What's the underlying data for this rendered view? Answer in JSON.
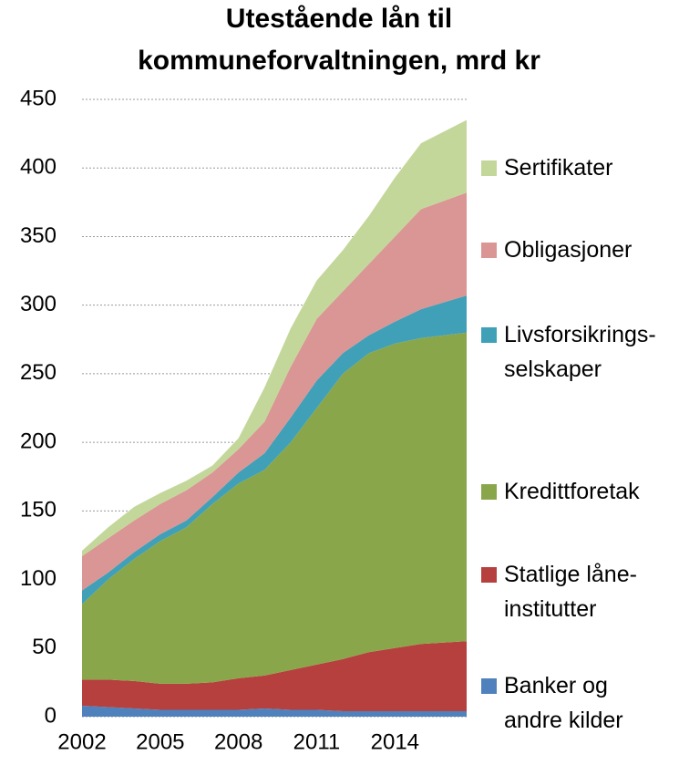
{
  "chart_data": {
    "type": "area",
    "title": "Utestående lån til\nkommuneforvaltningen, mrd kr",
    "x": [
      2002,
      2003,
      2004,
      2005,
      2006,
      2007,
      2008,
      2009,
      2010,
      2011,
      2012,
      2013,
      2014,
      2015,
      2016.75
    ],
    "xlim": [
      2002,
      2016.75
    ],
    "xticks": [
      2002,
      2005,
      2008,
      2011,
      2014
    ],
    "ylim": [
      0,
      450
    ],
    "yticks": [
      0,
      50,
      100,
      150,
      200,
      250,
      300,
      350,
      400,
      450
    ],
    "grid": true,
    "stacked": true,
    "series": [
      {
        "name": "Banker og\nandre kilder",
        "color": "#4f81bd",
        "values": [
          8,
          7,
          6,
          5,
          5,
          5,
          5,
          6,
          5,
          5,
          4,
          4,
          4,
          4,
          4
        ]
      },
      {
        "name": "Statlige låne-\ninstitutter",
        "color": "#b5403d",
        "values": [
          19,
          20,
          20,
          19,
          19,
          20,
          23,
          24,
          29,
          33,
          38,
          43,
          46,
          49,
          51
        ]
      },
      {
        "name": "Kredittforetak",
        "color": "#8aa64a",
        "values": [
          55,
          73,
          89,
          104,
          114,
          130,
          142,
          150,
          166,
          187,
          208,
          218,
          222,
          223,
          225
        ]
      },
      {
        "name": "Livsforsikrings-\nselskaper",
        "color": "#3fa0b8",
        "values": [
          10,
          5,
          5,
          5,
          5,
          5,
          8,
          12,
          18,
          20,
          15,
          13,
          16,
          21,
          27
        ]
      },
      {
        "name": "Obligasjoner",
        "color": "#d99694",
        "values": [
          25,
          25,
          23,
          22,
          22,
          18,
          17,
          23,
          37,
          45,
          45,
          52,
          62,
          73,
          75
        ]
      },
      {
        "name": "Sertifikater",
        "color": "#c4d79b",
        "values": [
          4,
          8,
          10,
          8,
          7,
          5,
          8,
          25,
          28,
          28,
          30,
          35,
          43,
          48,
          53
        ]
      }
    ]
  }
}
